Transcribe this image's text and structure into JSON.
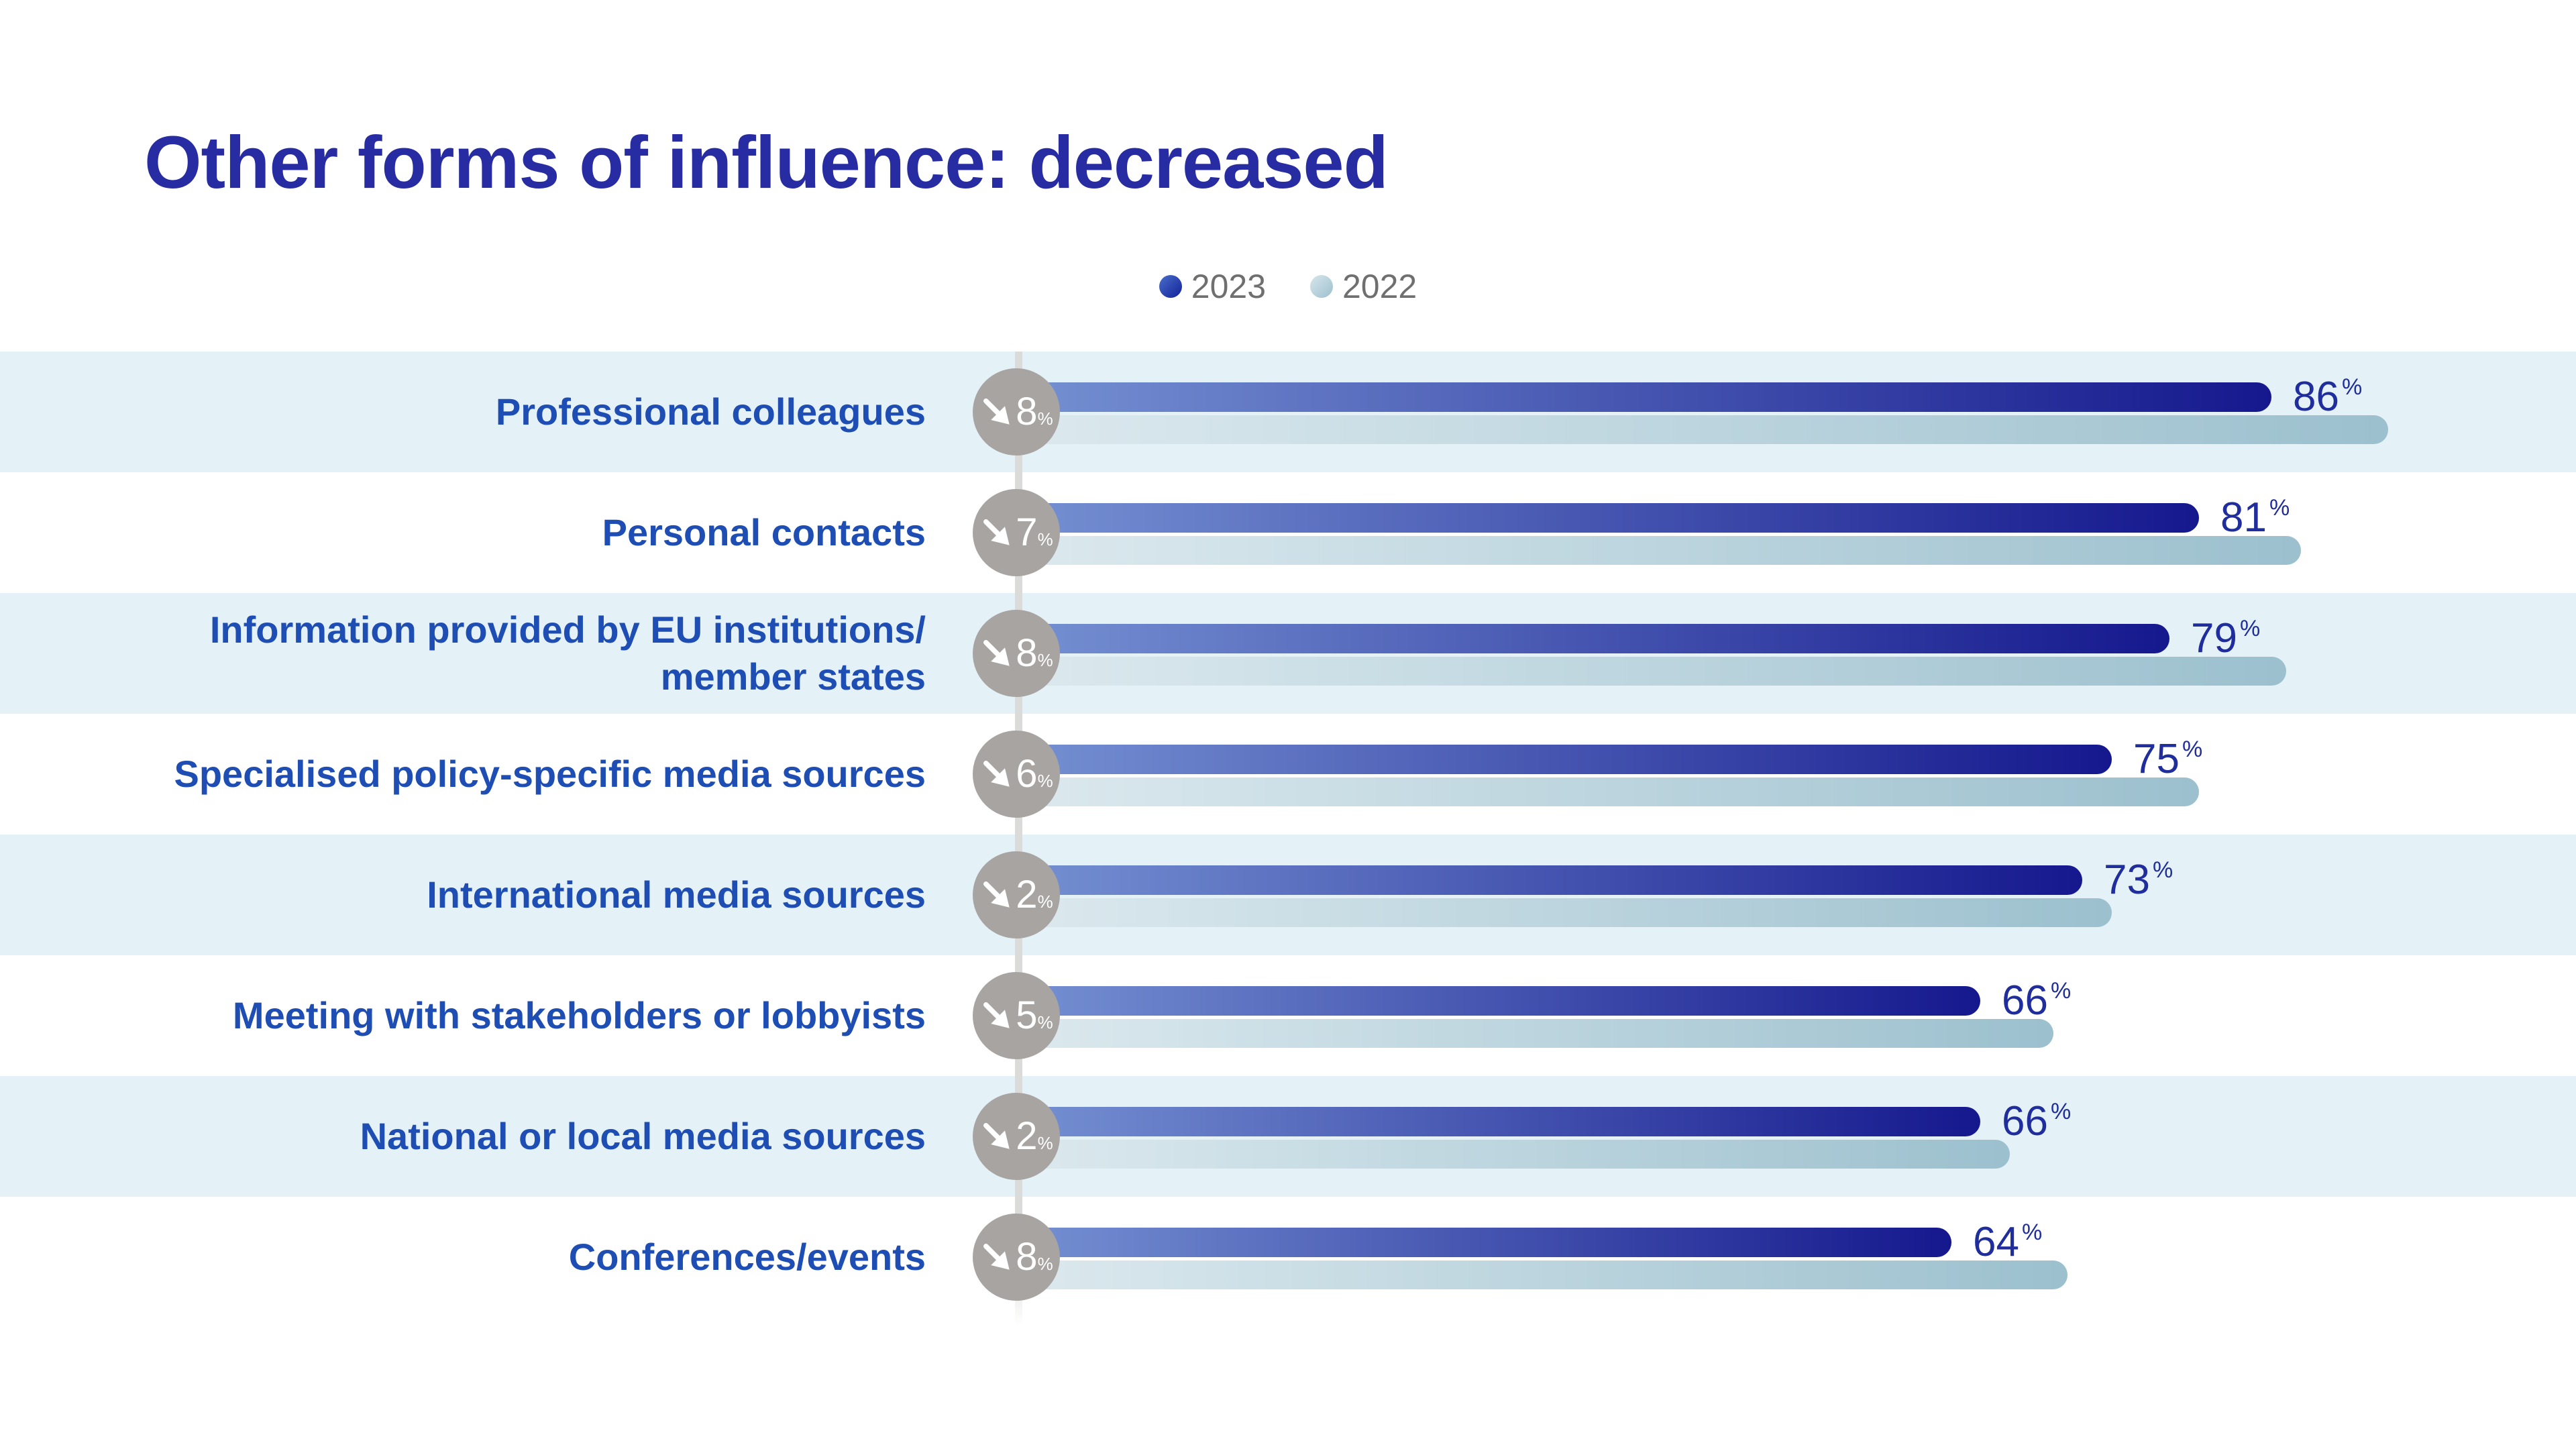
{
  "title": "Other forms of influence: decreased",
  "legend": {
    "items": [
      {
        "label": "2023"
      },
      {
        "label": "2022"
      }
    ]
  },
  "unit": "%",
  "chart_data": {
    "type": "bar",
    "orientation": "horizontal",
    "title": "Other forms of influence: decreased",
    "unit": "%",
    "categories": [
      "Professional colleagues",
      "Personal contacts",
      "Information provided by EU institutions/\nmember states",
      "Specialised policy-specific media sources",
      "International media sources",
      "Meeting with stakeholders or lobbyists",
      "National or local media sources",
      "Conferences/events"
    ],
    "series": [
      {
        "name": "2023",
        "values": [
          86,
          81,
          79,
          75,
          73,
          66,
          66,
          64
        ]
      },
      {
        "name": "2022",
        "values": [
          94,
          88,
          87,
          81,
          75,
          71,
          68,
          72
        ]
      }
    ],
    "value_labels_2023": [
      "86",
      "81",
      "79",
      "75",
      "73",
      "66",
      "66",
      "64"
    ],
    "decrease_pct": [
      8,
      7,
      8,
      6,
      2,
      5,
      2,
      8
    ],
    "xlim": [
      0,
      100
    ],
    "grid": false,
    "legend_position": "top-center"
  },
  "colors": {
    "title": "#282ca3",
    "category_label": "#1e4eb4",
    "value_label": "#1f2d9d",
    "stripe": "#e4f1f6",
    "badge": "#a7a4a1",
    "axis_line": "#dbdbd9",
    "legend_text": "#6f6f6f",
    "bar_2023_start": "#7590d2",
    "bar_2023_end": "#15188d",
    "bar_2022_start": "#dce9ee",
    "bar_2022_end": "#9cc0ce",
    "dot_2023_start": "#4a6fc9",
    "dot_2023_end": "#12219a",
    "dot_2022_start": "#d8e6ec",
    "dot_2022_end": "#9cc0ce"
  }
}
